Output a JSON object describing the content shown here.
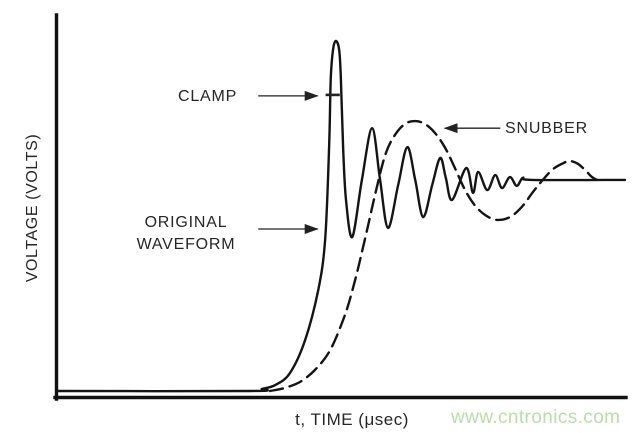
{
  "figure": {
    "labels": {
      "clamp": "CLAMP",
      "original_line1": "ORIGINAL",
      "original_line2": "WAVEFORM",
      "snubber": "SNUBBER",
      "y_axis": "VOLTAGE (VOLTS)",
      "x_axis": "t, TIME (μsec)"
    },
    "watermark": "www.cntronics.com",
    "colors": {
      "ink": "#141414",
      "label_text": "#262626",
      "watermark_green": "#b7dfa6",
      "background": "#ffffff"
    }
  },
  "chart_data": {
    "type": "line",
    "title": "",
    "xlabel": "t, TIME (μsec)",
    "ylabel": "VOLTAGE (VOLTS)",
    "xlim": [
      0,
      10
    ],
    "ylim": [
      0,
      10.5
    ],
    "grid": false,
    "tick_labels": "none (qualitative waveform sketch, arbitrary units)",
    "legend_position": "inline annotations with arrows",
    "steady_state_level": 6.03,
    "clamp_level": 8.45,
    "series": [
      {
        "name": "ORIGINAL WAVEFORM",
        "style": "solid",
        "description": "fast rise, tall narrow spike clipped marker at clamp level, then decaying ringing oscillation settling to steady-state",
        "points": [
          [
            0,
            0
          ],
          [
            3.39,
            0
          ],
          [
            3.6,
            0.06
          ],
          [
            3.83,
            0.17
          ],
          [
            4.09,
            0.51
          ],
          [
            4.36,
            1.46
          ],
          [
            4.59,
            2.89
          ],
          [
            4.71,
            4.31
          ],
          [
            4.78,
            6.89
          ],
          [
            4.81,
            8.89
          ],
          [
            4.85,
            9.74
          ],
          [
            4.9,
            10
          ],
          [
            4.96,
            9.74
          ],
          [
            4.99,
            8.89
          ],
          [
            5.03,
            6.89
          ],
          [
            5.08,
            5.46
          ],
          [
            5.19,
            4.4
          ],
          [
            5.36,
            6.03
          ],
          [
            5.54,
            7.51
          ],
          [
            5.68,
            6.03
          ],
          [
            5.82,
            4.66
          ],
          [
            6.0,
            5.89
          ],
          [
            6.16,
            6.97
          ],
          [
            6.3,
            6.03
          ],
          [
            6.44,
            4.97
          ],
          [
            6.6,
            5.89
          ],
          [
            6.74,
            6.66
          ],
          [
            6.84,
            6.09
          ],
          [
            6.95,
            5.46
          ],
          [
            7.2,
            6.37
          ],
          [
            7.32,
            5.66
          ],
          [
            7.41,
            6.26
          ],
          [
            7.57,
            5.74
          ],
          [
            7.71,
            6.17
          ],
          [
            7.83,
            5.8
          ],
          [
            7.97,
            6.11
          ],
          [
            8.09,
            5.86
          ],
          [
            8.2,
            6.09
          ],
          [
            8.36,
            6.03
          ],
          [
            10,
            6.03
          ]
        ]
      },
      {
        "name": "SNUBBER",
        "style": "dashed",
        "description": "slower rise, single broad overshoot, undershoot, small second overshoot, settles to steady-state",
        "points": [
          [
            3.74,
            0
          ],
          [
            4.0,
            0.09
          ],
          [
            4.27,
            0.26
          ],
          [
            4.53,
            0.6
          ],
          [
            4.8,
            1.17
          ],
          [
            5.06,
            2.17
          ],
          [
            5.24,
            3.17
          ],
          [
            5.41,
            4.31
          ],
          [
            5.59,
            5.6
          ],
          [
            5.77,
            6.74
          ],
          [
            5.94,
            7.31
          ],
          [
            6.12,
            7.63
          ],
          [
            6.3,
            7.71
          ],
          [
            6.47,
            7.63
          ],
          [
            6.65,
            7.37
          ],
          [
            6.83,
            6.94
          ],
          [
            7.0,
            6.37
          ],
          [
            7.18,
            5.74
          ],
          [
            7.35,
            5.31
          ],
          [
            7.53,
            5.03
          ],
          [
            7.74,
            4.89
          ],
          [
            7.97,
            4.97
          ],
          [
            8.18,
            5.26
          ],
          [
            8.38,
            5.69
          ],
          [
            8.55,
            6.03
          ],
          [
            8.73,
            6.34
          ],
          [
            8.91,
            6.51
          ],
          [
            9.03,
            6.57
          ],
          [
            9.17,
            6.49
          ],
          [
            9.31,
            6.29
          ],
          [
            9.42,
            6.11
          ],
          [
            9.51,
            6.03
          ]
        ]
      }
    ],
    "annotations": [
      {
        "label": "CLAMP",
        "type": "arrow",
        "direction": "right",
        "from": [
          3.53,
          8.43
        ],
        "to": [
          4.58,
          8.43
        ]
      },
      {
        "label": "ORIGINAL WAVEFORM",
        "type": "arrow",
        "direction": "right",
        "from": [
          3.53,
          4.63
        ],
        "to": [
          4.58,
          4.63
        ]
      },
      {
        "label": "SNUBBER",
        "type": "arrow",
        "direction": "left",
        "from": [
          7.8,
          7.51
        ],
        "to": [
          6.82,
          7.51
        ]
      },
      {
        "label": "clamp level tick on spike",
        "type": "tick",
        "from": [
          4.72,
          8.46
        ],
        "to": [
          4.97,
          8.46
        ]
      }
    ]
  }
}
